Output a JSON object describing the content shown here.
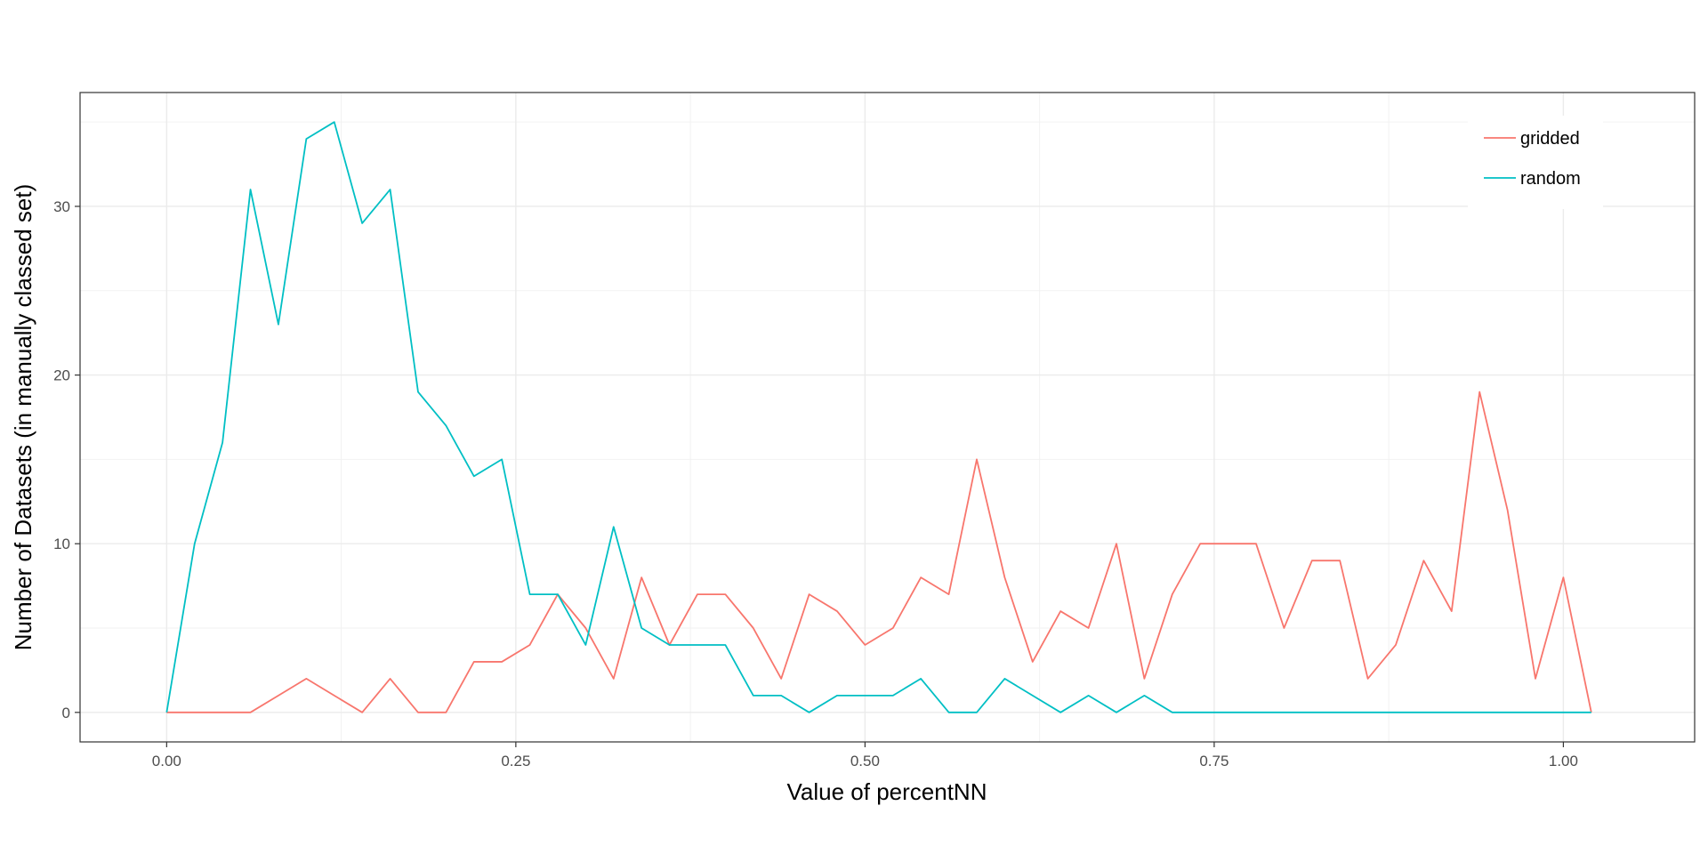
{
  "chart_data": {
    "type": "line",
    "xlabel": "Value of percentNN",
    "ylabel": "Number of Datasets (in manually classed set)",
    "xlim": [
      -0.062,
      1.094
    ],
    "ylim": [
      -1.75,
      36.75
    ],
    "x_ticks": [
      {
        "value": 0.0,
        "label": "0.00"
      },
      {
        "value": 0.25,
        "label": "0.25"
      },
      {
        "value": 0.5,
        "label": "0.50"
      },
      {
        "value": 0.75,
        "label": "0.75"
      },
      {
        "value": 1.0,
        "label": "1.00"
      }
    ],
    "y_ticks": [
      {
        "value": 0,
        "label": "0"
      },
      {
        "value": 10,
        "label": "10"
      },
      {
        "value": 20,
        "label": "20"
      },
      {
        "value": 30,
        "label": "30"
      }
    ],
    "grid": true,
    "legend_position": "top-right",
    "x": [
      0,
      0.02,
      0.04,
      0.06,
      0.08,
      0.1,
      0.12,
      0.14,
      0.16,
      0.18,
      0.2,
      0.22,
      0.24,
      0.26,
      0.28,
      0.3,
      0.32,
      0.34,
      0.36,
      0.38,
      0.4,
      0.42,
      0.44,
      0.46,
      0.48,
      0.5,
      0.52,
      0.54,
      0.56,
      0.58,
      0.6,
      0.62,
      0.64,
      0.66,
      0.68,
      0.7,
      0.72,
      0.74,
      0.76,
      0.78,
      0.8,
      0.82,
      0.84,
      0.86,
      0.88,
      0.9,
      0.92,
      0.94,
      0.96,
      0.98,
      1.0,
      1.02
    ],
    "series": [
      {
        "name": "gridded",
        "color": "#F8766D",
        "values": [
          0,
          0,
          0,
          0,
          1,
          2,
          1,
          0,
          2,
          0,
          0,
          3,
          3,
          4,
          7,
          5,
          2,
          8,
          4,
          7,
          7,
          5,
          2,
          7,
          6,
          4,
          5,
          8,
          7,
          15,
          8,
          3,
          6,
          5,
          10,
          2,
          7,
          10,
          10,
          10,
          5,
          9,
          9,
          2,
          4,
          9,
          6,
          19,
          12,
          2,
          8,
          0
        ]
      },
      {
        "name": "random",
        "color": "#00BFC4",
        "values": [
          0,
          10,
          16,
          31,
          23,
          34,
          35,
          29,
          31,
          19,
          17,
          14,
          15,
          7,
          7,
          4,
          11,
          5,
          4,
          4,
          4,
          1,
          1,
          0,
          1,
          1,
          1,
          2,
          0,
          0,
          2,
          1,
          0,
          1,
          0,
          1,
          0,
          0,
          0,
          0,
          0,
          0,
          0,
          0,
          0,
          0,
          0,
          0,
          0,
          0,
          0,
          0
        ]
      }
    ]
  }
}
